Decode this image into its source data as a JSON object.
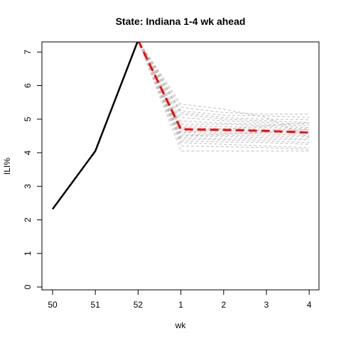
{
  "chart_data": {
    "type": "line",
    "title": "State: Indiana 1-4 wk ahead",
    "xlabel": "wk",
    "ylabel": "ILI%",
    "x_tick_labels": [
      "50",
      "51",
      "52",
      "1",
      "2",
      "3",
      "4"
    ],
    "y_ticks": [
      0,
      1,
      2,
      3,
      4,
      5,
      6,
      7
    ],
    "ylim": [
      0,
      7.3
    ],
    "grid": false,
    "legend": "none",
    "observed": {
      "color": "#000000",
      "style": "solid",
      "x": [
        "50",
        "51",
        "52"
      ],
      "values": [
        2.32,
        4.05,
        7.35
      ]
    },
    "ensemble": {
      "color": "#bebebe",
      "style": "dashed",
      "x": [
        "52",
        "1",
        "2",
        "3",
        "4"
      ],
      "trajectories": [
        [
          7.35,
          5.45,
          5.3,
          5.05,
          4.45
        ],
        [
          7.35,
          5.35,
          5.2,
          5.15,
          5.15
        ],
        [
          7.35,
          5.25,
          5.12,
          5.1,
          5.05
        ],
        [
          7.35,
          5.2,
          5.05,
          5.0,
          4.98
        ],
        [
          7.35,
          5.15,
          5.0,
          4.95,
          4.9
        ],
        [
          7.35,
          5.05,
          4.95,
          4.9,
          4.85
        ],
        [
          7.35,
          4.95,
          4.88,
          4.85,
          4.8
        ],
        [
          7.35,
          4.85,
          4.85,
          4.8,
          4.75
        ],
        [
          7.35,
          4.8,
          4.78,
          4.75,
          4.72
        ],
        [
          7.35,
          4.75,
          4.72,
          4.7,
          4.68
        ],
        [
          7.35,
          4.7,
          4.68,
          4.66,
          4.62
        ],
        [
          7.35,
          4.65,
          4.62,
          4.6,
          4.58
        ],
        [
          7.35,
          4.6,
          4.58,
          4.55,
          4.52
        ],
        [
          7.35,
          4.55,
          4.52,
          4.5,
          4.48
        ],
        [
          7.35,
          4.5,
          4.48,
          4.45,
          4.42
        ],
        [
          7.35,
          4.45,
          4.42,
          4.4,
          4.38
        ],
        [
          7.35,
          4.4,
          4.38,
          4.35,
          4.3
        ],
        [
          7.35,
          4.35,
          4.32,
          4.3,
          4.25
        ],
        [
          7.35,
          4.3,
          4.25,
          4.2,
          4.15
        ],
        [
          7.35,
          4.2,
          4.18,
          4.15,
          4.1
        ],
        [
          7.35,
          4.05,
          4.05,
          4.05,
          4.05
        ],
        [
          7.35,
          4.5,
          4.55,
          4.6,
          4.7
        ],
        [
          7.35,
          4.6,
          4.7,
          4.8,
          4.9
        ]
      ]
    },
    "mean_forecast": {
      "color": "#ff0000",
      "style": "dashed",
      "x": [
        "52",
        "1",
        "2",
        "3",
        "4"
      ],
      "values": [
        7.35,
        4.7,
        4.68,
        4.65,
        4.6
      ]
    }
  }
}
